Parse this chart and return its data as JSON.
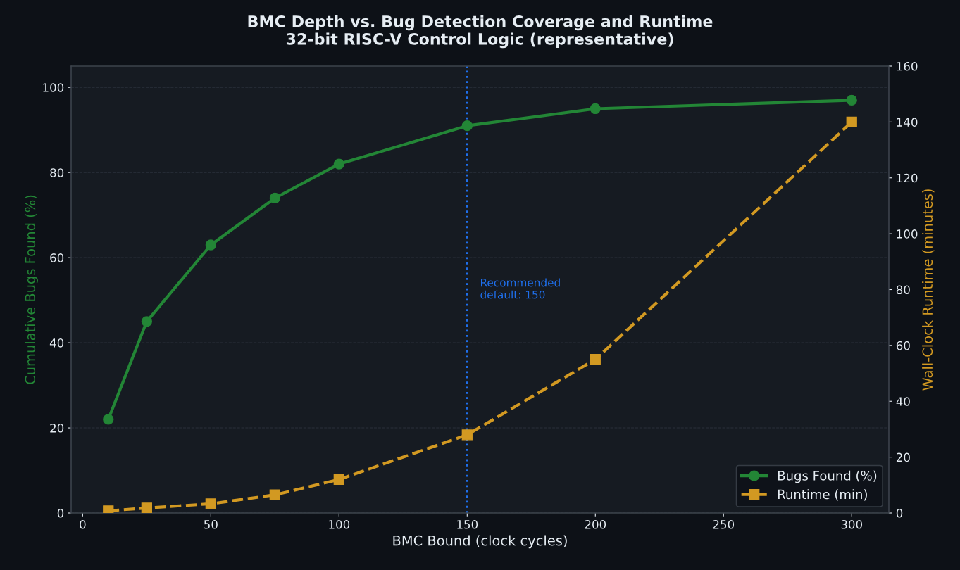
{
  "chart_data": {
    "type": "line",
    "title": "BMC Depth vs. Bug Detection Coverage and Runtime\n32-bit RISC-V Control Logic (representative)",
    "xlabel": "BMC Bound (clock cycles)",
    "ylabel": "Cumulative Bugs Found (%)",
    "y2label": "Wall-Clock Runtime (minutes)",
    "x": [
      10,
      25,
      50,
      75,
      100,
      150,
      200,
      300
    ],
    "series": [
      {
        "name": "Bugs Found (%)",
        "color": "#238636",
        "marker": "circle",
        "line_style": "solid",
        "values": [
          22,
          45,
          63,
          74,
          82,
          91,
          95,
          97
        ]
      },
      {
        "name": "Runtime (min)",
        "color": "#d29922",
        "marker": "square",
        "line_style": "dashed",
        "axis": "y2",
        "values": [
          0.8,
          1.8,
          3.3,
          6.5,
          12,
          28,
          55,
          140
        ]
      }
    ],
    "xlim": [
      -4.5,
      314.5
    ],
    "xticks": [
      0,
      50,
      100,
      150,
      200,
      250,
      300
    ],
    "ylim": [
      0,
      105
    ],
    "yticks": [
      0,
      20,
      40,
      60,
      80,
      100
    ],
    "y2lim": [
      0,
      160
    ],
    "y2ticks": [
      0,
      20,
      40,
      60,
      80,
      100,
      120,
      140,
      160
    ],
    "ref_lines": [
      {
        "axis": "x",
        "value": 150,
        "label": "Recommended\ndefault: 150",
        "color": "#1f6feb",
        "line_style": "dotted"
      }
    ],
    "grid": "y",
    "legend": "bottom right"
  }
}
